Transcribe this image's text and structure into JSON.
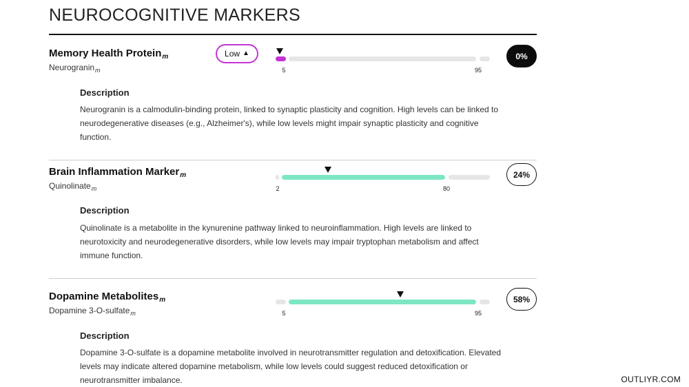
{
  "page": {
    "title": "NEUROCOGNITIVE MARKERS"
  },
  "desc_heading": "Description",
  "markers": [
    {
      "name": "Memory Health Protein",
      "subscript": "m",
      "compound": "Neurogranin",
      "status": "Low",
      "status_icon": "warning-triangle-icon",
      "range_low": "5",
      "range_high": "95",
      "percentile": "0%",
      "percentile_value": 0,
      "description": "Neurogranin is a calmodulin-binding protein, linked to synaptic plasticity and cognition. High levels can be linked to neurodegenerative diseases (e.g., Alzheimer's), while low levels might impair synaptic plasticity and cognitive function."
    },
    {
      "name": "Brain Inflammation Marker",
      "subscript": "m",
      "compound": "Quinolinate",
      "status": "",
      "range_low": "2",
      "range_high": "80",
      "percentile": "24%",
      "percentile_value": 24,
      "description": "Quinolinate is a metabolite in the kynurenine pathway linked to neuroinflammation. High levels are linked to neurotoxicity and neurodegenerative disorders, while low levels may impair tryptophan metabolism and affect immune function."
    },
    {
      "name": "Dopamine Metabolites",
      "subscript": "m",
      "compound": "Dopamine 3-O-sulfate",
      "status": "",
      "range_low": "5",
      "range_high": "95",
      "percentile": "58%",
      "percentile_value": 58,
      "description": "Dopamine 3-O-sulfate is a dopamine metabolite involved in neurotransmitter regulation and detoxification. Elevated levels may indicate altered dopamine metabolism, while low levels could suggest reduced detoxification or neurotransmitter imbalance."
    }
  ],
  "colors": {
    "normal_fill": "#7de7c3",
    "low_fill": "#c433d4",
    "track": "#e6e6e6"
  },
  "footer": {
    "brand": "OUTLIYR.COM"
  }
}
